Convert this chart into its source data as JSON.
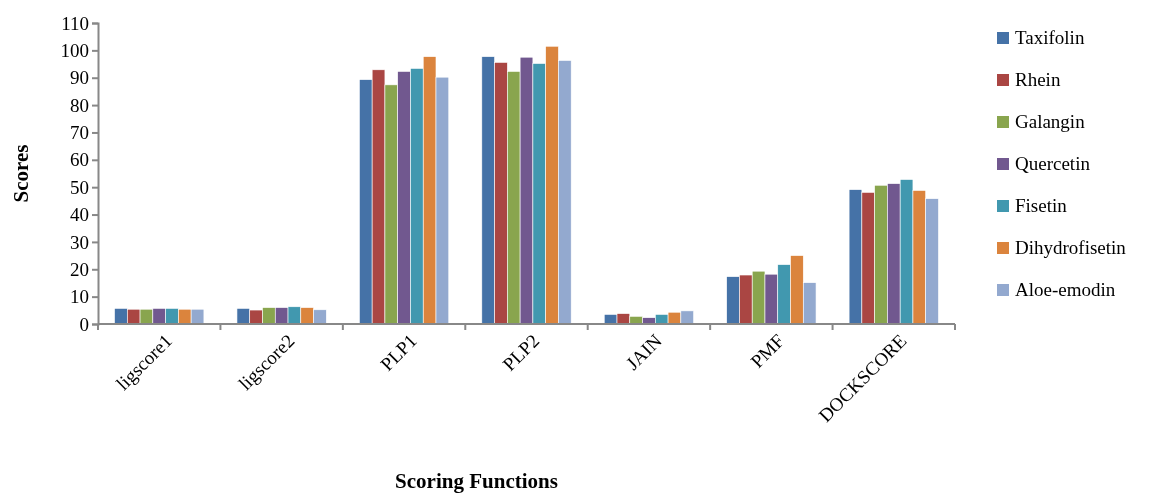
{
  "chart_data": {
    "type": "bar",
    "xlabel": "Scoring Functions",
    "ylabel": "Scores",
    "categories": [
      "ligscore1",
      "ligscore2",
      "PLP1",
      "PLP2",
      "JAIN",
      "PMF",
      "DOCKSCORE"
    ],
    "series": [
      {
        "name": "Taxifolin",
        "color": "#4572a7",
        "values": [
          5.7,
          5.7,
          89.3,
          97.7,
          3.5,
          17.3,
          49.1
        ]
      },
      {
        "name": "Rhein",
        "color": "#aa4643",
        "values": [
          5.4,
          5.1,
          92.9,
          95.6,
          3.8,
          17.9,
          48.1
        ]
      },
      {
        "name": "Galangin",
        "color": "#89a54e",
        "values": [
          5.4,
          6.0,
          87.4,
          92.3,
          2.8,
          19.3,
          50.7
        ]
      },
      {
        "name": "Quercetin",
        "color": "#71588f",
        "values": [
          5.7,
          6.0,
          92.3,
          97.5,
          2.3,
          18.2,
          51.3
        ]
      },
      {
        "name": "Fisetin",
        "color": "#4198af",
        "values": [
          5.7,
          6.3,
          93.4,
          95.2,
          3.5,
          21.7,
          52.8
        ]
      },
      {
        "name": "Dihydrofisetin",
        "color": "#db843d",
        "values": [
          5.4,
          6.0,
          97.7,
          101.5,
          4.3,
          25.0,
          48.8
        ]
      },
      {
        "name": "Aloe-emodin",
        "color": "#93a9cf",
        "values": [
          5.4,
          5.2,
          90.2,
          96.3,
          4.8,
          15.1,
          45.8
        ]
      }
    ],
    "ylim": [
      0,
      110
    ],
    "yticks": [
      0,
      10,
      20,
      30,
      40,
      50,
      60,
      70,
      80,
      90,
      100,
      110
    ],
    "grid": false,
    "legend": "right"
  }
}
